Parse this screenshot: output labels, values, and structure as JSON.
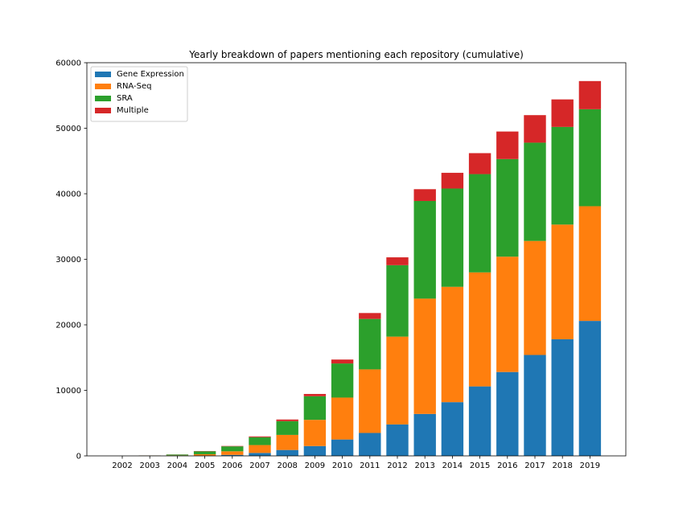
{
  "chart_data": {
    "type": "bar",
    "stacked": true,
    "title": "Yearly breakdown of papers mentioning each repository (cumulative)",
    "xlabel": "",
    "ylabel": "",
    "ylim": [
      0,
      60000
    ],
    "yticks": [
      0,
      10000,
      20000,
      30000,
      40000,
      50000,
      60000
    ],
    "grid": false,
    "legend_position": "top-left",
    "categories": [
      "2002",
      "2003",
      "2004",
      "2005",
      "2006",
      "2007",
      "2008",
      "2009",
      "2010",
      "2011",
      "2012",
      "2013",
      "2014",
      "2015",
      "2016",
      "2017",
      "2018",
      "2019"
    ],
    "series": [
      {
        "name": "Gene Expression",
        "color": "#1f77b4",
        "values": [
          0,
          10,
          20,
          50,
          150,
          450,
          900,
          1500,
          2500,
          3500,
          4800,
          6400,
          8200,
          10600,
          12800,
          15400,
          17800,
          20600
        ]
      },
      {
        "name": "RNA-Seq",
        "color": "#ff7f0e",
        "values": [
          0,
          20,
          60,
          200,
          550,
          1200,
          2300,
          4000,
          6400,
          9700,
          13400,
          17600,
          17600,
          17400,
          17600,
          17400,
          17500,
          17500
        ]
      },
      {
        "name": "SRA",
        "color": "#2ca02c",
        "values": [
          0,
          30,
          120,
          450,
          750,
          1200,
          2100,
          3600,
          5200,
          7700,
          10900,
          14900,
          15000,
          15000,
          14900,
          15000,
          14900,
          14800
        ]
      },
      {
        "name": "Multiple",
        "color": "#d62728",
        "values": [
          0,
          5,
          15,
          40,
          60,
          120,
          250,
          350,
          600,
          900,
          1200,
          1800,
          2400,
          3200,
          4200,
          4200,
          4200,
          4300
        ]
      }
    ]
  }
}
